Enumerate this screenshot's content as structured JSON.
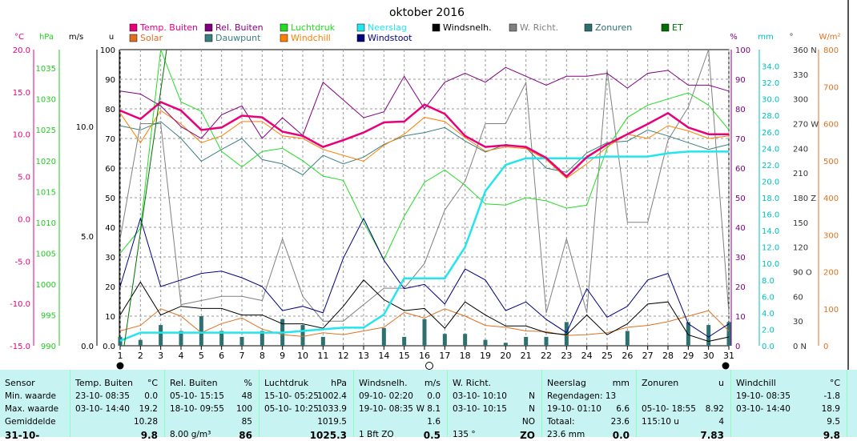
{
  "chart_data": {
    "type": "line",
    "title": "oktober 2016",
    "days": [
      1,
      2,
      3,
      4,
      5,
      6,
      7,
      8,
      9,
      10,
      11,
      12,
      13,
      14,
      15,
      16,
      17,
      18,
      19,
      20,
      21,
      22,
      23,
      24,
      25,
      26,
      27,
      28,
      29,
      30,
      31
    ],
    "x_ticks": [
      "1",
      "2",
      "3",
      "4",
      "5",
      "6",
      "7",
      "8",
      "9",
      "10",
      "11",
      "12",
      "13",
      "14",
      "15",
      "16",
      "17",
      "18",
      "19",
      "20",
      "21",
      "22",
      "23",
      "24",
      "25",
      "26",
      "27",
      "28",
      "29",
      "30",
      "31"
    ],
    "axes": [
      {
        "unit": "°C",
        "color": "#e8007a",
        "min": -15,
        "max": 20,
        "ticks": [
          "20.0",
          "15.0",
          "10.0",
          "5.0",
          "0.0",
          "-5.0",
          "-10.0",
          "-15.0"
        ]
      },
      {
        "unit": "hPa",
        "color": "#22cc22",
        "min": 990,
        "max": 1038,
        "ticks": [
          "1035",
          "1030",
          "1025",
          "1020",
          "1015",
          "1010",
          "1005",
          "1000",
          "995",
          "990"
        ]
      },
      {
        "unit": "m/s",
        "color": "#000000",
        "ticks": [
          "10.0",
          "5.0",
          "0.0"
        ]
      },
      {
        "unit": "u",
        "color": "#000000",
        "min": 0,
        "max": 100,
        "ticks": [
          "100",
          "90",
          "80",
          "70",
          "60",
          "50",
          "40",
          "30",
          "20",
          "10",
          "0.0"
        ]
      },
      {
        "unit": "%",
        "color": "#800080",
        "min": 0,
        "max": 100,
        "ticks": [
          "100",
          "90",
          "80",
          "70",
          "60",
          "50",
          "40",
          "30",
          "20",
          "10",
          "0"
        ]
      },
      {
        "unit": "mm",
        "color": "#00c0c0",
        "min": 0,
        "max": 36,
        "ticks": [
          "34.0",
          "32.0",
          "30.0",
          "28.0",
          "26.0",
          "24.0",
          "22.0",
          "20.0",
          "18.0",
          "16.0",
          "14.0",
          "12.0",
          "10.0",
          "8.0",
          "6.0",
          "4.0",
          "2.0",
          "0.0"
        ]
      },
      {
        "unit": "°",
        "color": "#333333",
        "min": 0,
        "max": 360,
        "ticks": [
          "360 N",
          "330",
          "300",
          "270 W",
          "240",
          "210",
          "180 Z",
          "150",
          "120",
          "90 O",
          "60",
          "30",
          "0 N"
        ]
      },
      {
        "unit": "W/m²",
        "color": "#e07020",
        "min": 0,
        "max": 800,
        "ticks": [
          "800",
          "700",
          "600",
          "500",
          "400",
          "300",
          "200",
          "100",
          "0"
        ]
      }
    ],
    "legend": [
      {
        "name": "Temp. Buiten",
        "color": "#e8007a"
      },
      {
        "name": "Solar",
        "color": "#e07020"
      },
      {
        "name": "Rel. Buiten",
        "color": "#800080"
      },
      {
        "name": "Dauwpunt",
        "color": "#3a8080"
      },
      {
        "name": "Luchtdruk",
        "color": "#22dd22"
      },
      {
        "name": "Windchill",
        "color": "#ff7f00"
      },
      {
        "name": "Neerslag",
        "color": "#22e6ee"
      },
      {
        "name": "Windstoot",
        "color": "#000080"
      },
      {
        "name": "Windsnelh.",
        "color": "#000000"
      },
      {
        "name": "W. Richt.",
        "color": "#808080"
      },
      {
        "name": "Zonuren",
        "color": "#2e7070"
      },
      {
        "name": "ET",
        "color": "#007000"
      }
    ],
    "series": {
      "temp": [
        12.8,
        11.8,
        13.8,
        12.8,
        10.5,
        10.8,
        12.2,
        12.0,
        10.3,
        9.8,
        8.5,
        9.3,
        10.2,
        11.4,
        11.5,
        13.5,
        12.4,
        9.8,
        8.5,
        8.7,
        8.5,
        7.2,
        5.0,
        7.3,
        8.8,
        10.0,
        11.2,
        12.5,
        10.8,
        10.0,
        10.0
      ],
      "windchill": [
        12.5,
        9.0,
        12.8,
        11.2,
        9.0,
        9.8,
        11.5,
        11.5,
        9.8,
        9.5,
        8.2,
        7.5,
        6.8,
        8.7,
        10.0,
        12.0,
        11.5,
        9.6,
        8.0,
        8.5,
        8.3,
        7.0,
        4.8,
        6.5,
        8.5,
        10.0,
        9.5,
        11.0,
        10.4,
        9.5,
        9.8
      ],
      "dewpoint": [
        11.0,
        10.5,
        11.5,
        9.5,
        6.8,
        8.2,
        9.5,
        7.0,
        6.5,
        5.2,
        7.5,
        6.5,
        7.3,
        8.8,
        9.8,
        10.2,
        10.8,
        9.2,
        7.9,
        8.8,
        8.4,
        6.0,
        5.5,
        7.8,
        9.0,
        9.2,
        10.5,
        9.8,
        9.0,
        8.2,
        8.8
      ],
      "rel_humidity": [
        86,
        85,
        81,
        74,
        70,
        78,
        81,
        70,
        77,
        71,
        89,
        83,
        77,
        79,
        91,
        80,
        89,
        92,
        89,
        94,
        91,
        88,
        91,
        91,
        92,
        87,
        92,
        93,
        88,
        88,
        86
      ],
      "pressure": [
        1005,
        1009,
        1038,
        1029.5,
        1028,
        1021.5,
        1019,
        1021.5,
        1022,
        1020,
        1017.5,
        1016.8,
        1010,
        1004,
        1011,
        1016.5,
        1018.5,
        1016,
        1013,
        1012.8,
        1014,
        1013.5,
        1012.3,
        1012.8,
        1022,
        1027,
        1029,
        1030,
        1031,
        1029,
        1025
      ],
      "rain_cum": [
        0.6,
        1.6,
        1.6,
        1.6,
        1.6,
        1.6,
        1.6,
        1.6,
        1.6,
        1.8,
        2.0,
        2.2,
        2.2,
        3.8,
        8.2,
        8.2,
        8.2,
        12.0,
        18.8,
        22.0,
        22.8,
        22.8,
        22.8,
        22.8,
        23.0,
        23.0,
        23.0,
        23.4,
        23.6,
        23.6,
        23.6
      ],
      "wind_speed": [
        1.4,
        2.9,
        1.4,
        1.8,
        1.7,
        1.7,
        1.4,
        1.4,
        1.0,
        1.0,
        0.8,
        1.8,
        3.0,
        2.1,
        1.6,
        1.7,
        0.8,
        2.0,
        1.4,
        0.9,
        0.9,
        0.6,
        0.5,
        1.4,
        0.5,
        1.0,
        1.9,
        2.0,
        0.5,
        0.2,
        0.4
      ],
      "wind_gust": [
        2.7,
        5.8,
        2.7,
        3.0,
        3.3,
        3.4,
        3.1,
        2.7,
        1.6,
        1.8,
        1.5,
        4.0,
        5.8,
        3.9,
        2.6,
        2.8,
        1.9,
        3.5,
        3.0,
        1.6,
        2.0,
        1.2,
        0.6,
        2.6,
        1.3,
        1.8,
        3.0,
        3.3,
        1.0,
        0.4,
        1.0
      ],
      "wind_dir": [
        130,
        270,
        270,
        50,
        55,
        60,
        60,
        55,
        130,
        60,
        30,
        30,
        50,
        70,
        70,
        100,
        165,
        200,
        270,
        270,
        320,
        40,
        130,
        40,
        335,
        150,
        150,
        250,
        290,
        360,
        40
      ],
      "solar": [
        40,
        55,
        100,
        80,
        35,
        60,
        75,
        45,
        30,
        25,
        35,
        30,
        40,
        50,
        90,
        75,
        100,
        80,
        55,
        50,
        40,
        38,
        28,
        30,
        35,
        50,
        55,
        65,
        80,
        95,
        40
      ],
      "sunshine": [
        3,
        2,
        7,
        5,
        10,
        5,
        3,
        5,
        9,
        7,
        3,
        0,
        0,
        6,
        3,
        9,
        4,
        4,
        2,
        1,
        3,
        3,
        8,
        0,
        0,
        5,
        0,
        0,
        8,
        7,
        8
      ]
    }
  },
  "stats": {
    "rowlabels": [
      "Sensor",
      "Min. waarde",
      "Max. waarde",
      "Gemiddelde",
      "31-10-"
    ],
    "cols": [
      {
        "name": "Temp. Buiten",
        "unit": "°C",
        "rows": [
          {
            "l": "23-10-  08:35",
            "v": "0.0"
          },
          {
            "l": "03-10-  14:40",
            "v": "19.2"
          },
          {
            "l": "",
            "v": "10.28"
          },
          {
            "l": "",
            "v": "9.8"
          }
        ]
      },
      {
        "name": "Rel. Buiten",
        "unit": "%",
        "rows": [
          {
            "l": "05-10-  15:15",
            "v": "48"
          },
          {
            "l": "18-10-  09:55",
            "v": "100"
          },
          {
            "l": "",
            "v": "85"
          },
          {
            "l": "8.00 g/m³",
            "v": "86"
          }
        ]
      },
      {
        "name": "Luchtdruk",
        "unit": "hPa",
        "rows": [
          {
            "l": "15-10-  05:25",
            "v": "1002.4"
          },
          {
            "l": "05-10-  10:25",
            "v": "1033.9"
          },
          {
            "l": "",
            "v": "1019.5"
          },
          {
            "l": "",
            "v": "1025.3"
          }
        ]
      },
      {
        "name": "Windsnelh.",
        "unit": "m/s",
        "rows": [
          {
            "l": "09-10-  02:20",
            "v": "0.0"
          },
          {
            "l": "19-10-  08:35",
            "v": "W 8.1"
          },
          {
            "l": "",
            "v": "1.6"
          },
          {
            "l": "1 Bft ZO",
            "v": "0.5"
          }
        ]
      },
      {
        "name": "W. Richt.",
        "unit": "",
        "rows": [
          {
            "l": "03-10-  10:10",
            "v": "N"
          },
          {
            "l": "03-10-  10:15",
            "v": "N"
          },
          {
            "l": "",
            "v": "NO"
          },
          {
            "l": "135 °",
            "v": "ZO"
          }
        ]
      },
      {
        "name": "Neerslag",
        "unit": "mm",
        "rows": [
          {
            "l": "Regendagen: 13",
            "v": ""
          },
          {
            "l": "19-10-  01:10",
            "v": "6.6"
          },
          {
            "l": "Totaal:",
            "v": "23.6"
          },
          {
            "l": "23.6 mm",
            "v": "0.0"
          }
        ]
      },
      {
        "name": "Zonuren",
        "unit": "u",
        "rows": [
          {
            "l": "",
            "v": ""
          },
          {
            "l": "05-10-  18:55",
            "v": "8.92"
          },
          {
            "l": "115:10 u",
            "v": "4"
          },
          {
            "l": "",
            "v": "7.83"
          }
        ]
      },
      {
        "name": "Windchill",
        "unit": "°C",
        "rows": [
          {
            "l": "19-10-  08:35",
            "v": "-1.8"
          },
          {
            "l": "03-10-  14:40",
            "v": "18.9"
          },
          {
            "l": "",
            "v": "9.5"
          },
          {
            "l": "",
            "v": "9.8"
          }
        ]
      }
    ]
  }
}
